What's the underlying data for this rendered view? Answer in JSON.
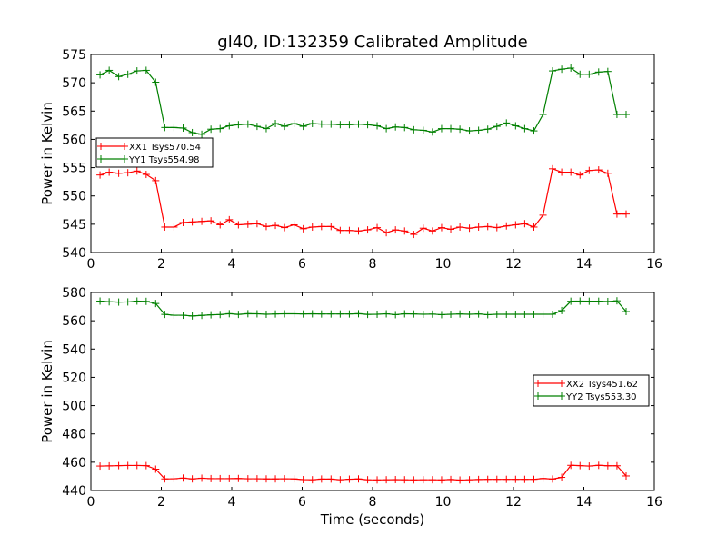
{
  "figure_title": "gl40, ID:132359 Calibrated Amplitude",
  "xlabel": "Time (seconds)",
  "chart_data": [
    {
      "type": "line",
      "title": "gl40, ID:132359 Calibrated Amplitude",
      "xlabel": "",
      "ylabel": "Power in Kelvin",
      "xlim": [
        0,
        16
      ],
      "ylim": [
        540,
        575
      ],
      "xticks": [
        0,
        2,
        4,
        6,
        8,
        10,
        12,
        14,
        16
      ],
      "yticks": [
        540,
        545,
        550,
        555,
        560,
        565,
        570,
        575
      ],
      "grid": false,
      "legend_position": "center-left",
      "x": [
        0.26,
        0.52,
        0.79,
        1.05,
        1.31,
        1.57,
        1.84,
        2.1,
        2.36,
        2.62,
        2.88,
        3.15,
        3.41,
        3.67,
        3.93,
        4.19,
        4.46,
        4.72,
        4.98,
        5.24,
        5.5,
        5.77,
        6.03,
        6.29,
        6.55,
        6.82,
        7.08,
        7.34,
        7.6,
        7.86,
        8.13,
        8.39,
        8.65,
        8.91,
        9.17,
        9.44,
        9.7,
        9.96,
        10.22,
        10.48,
        10.75,
        11.01,
        11.27,
        11.53,
        11.8,
        12.06,
        12.32,
        12.58,
        12.84,
        13.11,
        13.37,
        13.63,
        13.89,
        14.15,
        14.42,
        14.68,
        14.94,
        15.2
      ],
      "series": [
        {
          "name": "XX1 Tsys570.54",
          "color": "#ff0000",
          "values": [
            553.7,
            554.2,
            554.0,
            554.1,
            554.4,
            553.8,
            552.7,
            544.5,
            544.5,
            545.3,
            545.4,
            545.5,
            545.6,
            544.9,
            545.8,
            544.9,
            545.0,
            545.1,
            544.6,
            544.8,
            544.4,
            544.9,
            544.2,
            544.5,
            544.6,
            544.6,
            543.9,
            543.9,
            543.8,
            544.0,
            544.4,
            543.5,
            544.0,
            543.8,
            543.2,
            544.3,
            543.8,
            544.4,
            544.1,
            544.5,
            544.3,
            544.5,
            544.6,
            544.4,
            544.7,
            544.9,
            545.1,
            544.5,
            546.6,
            554.8,
            554.2,
            554.2,
            553.7,
            554.5,
            554.6,
            554.0,
            546.8,
            546.8
          ],
          "x_override": [
            0.26,
            0.52,
            0.79,
            1.05,
            1.31,
            1.57,
            1.84,
            2.1,
            2.36,
            2.62,
            2.88,
            3.15,
            3.41,
            3.67,
            3.93,
            4.19,
            4.46,
            4.72,
            4.98,
            5.24,
            5.5,
            5.77,
            6.03,
            6.29,
            6.55,
            6.82,
            7.08,
            7.34,
            7.6,
            7.86,
            8.13,
            8.39,
            8.65,
            8.91,
            9.17,
            9.44,
            9.7,
            9.96,
            10.22,
            10.48,
            10.75,
            11.01,
            11.27,
            11.53,
            11.8,
            12.06,
            12.32,
            12.58,
            12.84,
            13.11,
            13.37,
            13.63,
            13.89,
            14.15,
            14.42,
            14.68,
            14.94,
            15.2
          ]
        },
        {
          "name": "YY1 Tsys554.98",
          "color": "#008000",
          "values": [
            571.4,
            572.2,
            571.1,
            571.5,
            572.1,
            572.2,
            570.1,
            562.1,
            562.1,
            562.0,
            561.2,
            560.9,
            561.8,
            561.9,
            562.4,
            562.6,
            562.7,
            562.3,
            561.9,
            562.8,
            562.3,
            562.8,
            562.3,
            562.8,
            562.7,
            562.7,
            562.6,
            562.6,
            562.7,
            562.6,
            562.4,
            561.9,
            562.2,
            562.1,
            561.7,
            561.6,
            561.3,
            561.9,
            561.9,
            561.8,
            561.5,
            561.6,
            561.8,
            562.3,
            562.9,
            562.4,
            561.9,
            561.5,
            564.4,
            572.1,
            572.4,
            572.6,
            571.5,
            571.5,
            571.9,
            572.0,
            564.4,
            564.4
          ]
        }
      ]
    },
    {
      "type": "line",
      "title": "",
      "xlabel": "Time (seconds)",
      "ylabel": "Power in Kelvin",
      "xlim": [
        0,
        16
      ],
      "ylim": [
        440,
        580
      ],
      "xticks": [
        0,
        2,
        4,
        6,
        8,
        10,
        12,
        14,
        16
      ],
      "yticks": [
        440,
        460,
        480,
        500,
        520,
        540,
        560,
        580
      ],
      "grid": false,
      "legend_position": "center-right",
      "series": [
        {
          "name": "XX2 Tsys451.62",
          "color": "#ff0000",
          "values": [
            457.3,
            457.4,
            457.6,
            457.7,
            457.7,
            457.6,
            455.1,
            448.2,
            448.3,
            448.8,
            448.2,
            448.7,
            448.4,
            448.4,
            448.4,
            448.5,
            448.3,
            448.3,
            448.2,
            448.2,
            448.3,
            448.2,
            447.7,
            447.6,
            448.1,
            448.1,
            447.6,
            448.0,
            448.2,
            447.6,
            447.5,
            447.6,
            447.7,
            447.6,
            447.5,
            447.6,
            447.6,
            447.5,
            447.8,
            447.4,
            447.6,
            447.8,
            447.9,
            447.9,
            447.9,
            447.9,
            447.9,
            447.9,
            448.5,
            448.1,
            449.3,
            457.8,
            457.6,
            457.3,
            457.8,
            457.5,
            457.5,
            450.3
          ]
        },
        {
          "name": "YY2 Tsys553.30",
          "color": "#008000",
          "values": [
            573.9,
            573.4,
            573.2,
            573.3,
            573.9,
            573.7,
            572.2,
            564.5,
            563.9,
            563.9,
            563.4,
            563.8,
            564.2,
            564.4,
            565.0,
            564.5,
            565.0,
            564.9,
            564.6,
            564.8,
            564.9,
            564.9,
            564.8,
            564.9,
            564.8,
            564.8,
            564.8,
            564.8,
            565.0,
            564.5,
            564.6,
            564.9,
            564.3,
            564.9,
            564.8,
            564.6,
            564.7,
            564.3,
            564.6,
            564.8,
            564.6,
            564.8,
            564.3,
            564.6,
            564.6,
            564.6,
            564.6,
            564.6,
            564.6,
            564.6,
            567.2,
            573.8,
            573.9,
            573.8,
            573.8,
            573.6,
            574.1,
            566.5
          ]
        }
      ]
    }
  ]
}
